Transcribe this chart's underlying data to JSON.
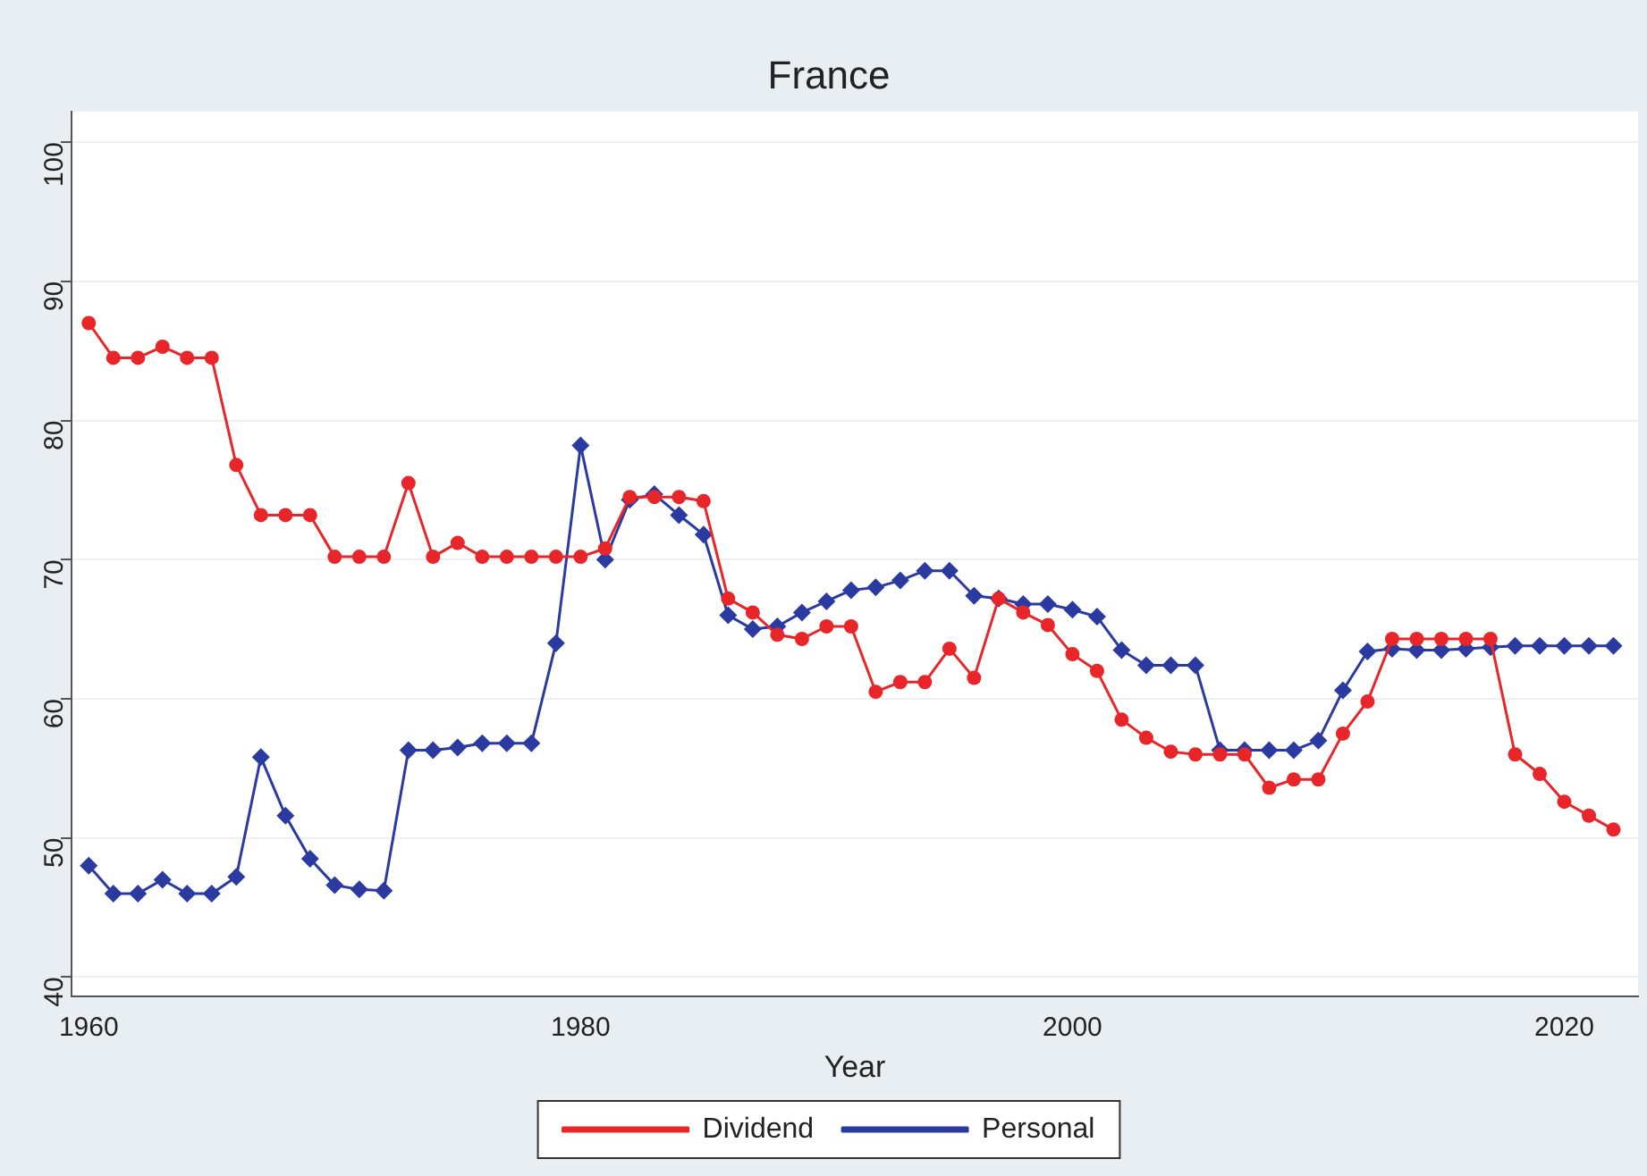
{
  "chart_data": {
    "type": "line",
    "title": "France",
    "xlabel": "Year",
    "x": [
      1960,
      1961,
      1962,
      1963,
      1964,
      1965,
      1966,
      1967,
      1968,
      1969,
      1970,
      1971,
      1972,
      1973,
      1974,
      1975,
      1976,
      1977,
      1978,
      1979,
      1980,
      1981,
      1982,
      1983,
      1984,
      1985,
      1986,
      1987,
      1988,
      1989,
      1990,
      1991,
      1992,
      1993,
      1994,
      1995,
      1996,
      1997,
      1998,
      1999,
      2000,
      2001,
      2002,
      2003,
      2004,
      2005,
      2006,
      2007,
      2008,
      2009,
      2010,
      2011,
      2012,
      2013,
      2014,
      2015,
      2016,
      2017,
      2018,
      2019,
      2020,
      2021,
      2022
    ],
    "series": [
      {
        "name": "Dividend",
        "color": "#e8262a",
        "marker": "circle",
        "values": [
          87,
          84.5,
          84.5,
          85.3,
          84.5,
          84.5,
          76.8,
          73.2,
          73.2,
          73.2,
          70.2,
          70.2,
          70.2,
          75.5,
          70.2,
          71.2,
          70.2,
          70.2,
          70.2,
          70.2,
          70.2,
          70.8,
          74.5,
          74.5,
          74.5,
          74.2,
          67.2,
          66.2,
          64.6,
          64.3,
          65.2,
          65.2,
          60.5,
          61.2,
          61.2,
          63.6,
          61.5,
          67.2,
          66.2,
          65.3,
          63.2,
          62,
          58.5,
          57.2,
          56.2,
          56,
          56,
          56,
          53.6,
          54.2,
          54.2,
          57.5,
          59.8,
          64.3,
          64.3,
          64.3,
          64.3,
          64.3,
          56,
          54.6,
          52.6,
          51.6,
          50.6
        ]
      },
      {
        "name": "Personal",
        "color": "#2a3aa0",
        "marker": "diamond",
        "values": [
          48,
          46,
          46,
          47,
          46,
          46,
          47.2,
          55.8,
          51.6,
          48.5,
          46.6,
          46.3,
          46.2,
          56.3,
          56.3,
          56.5,
          56.8,
          56.8,
          56.8,
          64,
          78.2,
          70,
          74.3,
          74.7,
          73.2,
          71.8,
          66,
          65,
          65.2,
          66.2,
          67,
          67.8,
          68,
          68.5,
          69.2,
          69.2,
          67.4,
          67.2,
          66.8,
          66.8,
          66.4,
          65.9,
          63.5,
          62.4,
          62.4,
          62.4,
          56.3,
          56.3,
          56.3,
          56.3,
          57,
          60.6,
          63.4,
          63.6,
          63.5,
          63.5,
          63.6,
          63.7,
          63.8,
          63.8,
          63.8,
          63.8,
          63.8
        ]
      }
    ],
    "xlim": [
      1959.3,
      2023
    ],
    "xticks": [
      1960,
      1980,
      2000,
      2020
    ],
    "ylim": [
      38.6,
      102.2
    ],
    "yticks": [
      40,
      50,
      60,
      70,
      80,
      90,
      100
    ],
    "grid": "y",
    "legend": "bottom",
    "line_style": "solid"
  }
}
